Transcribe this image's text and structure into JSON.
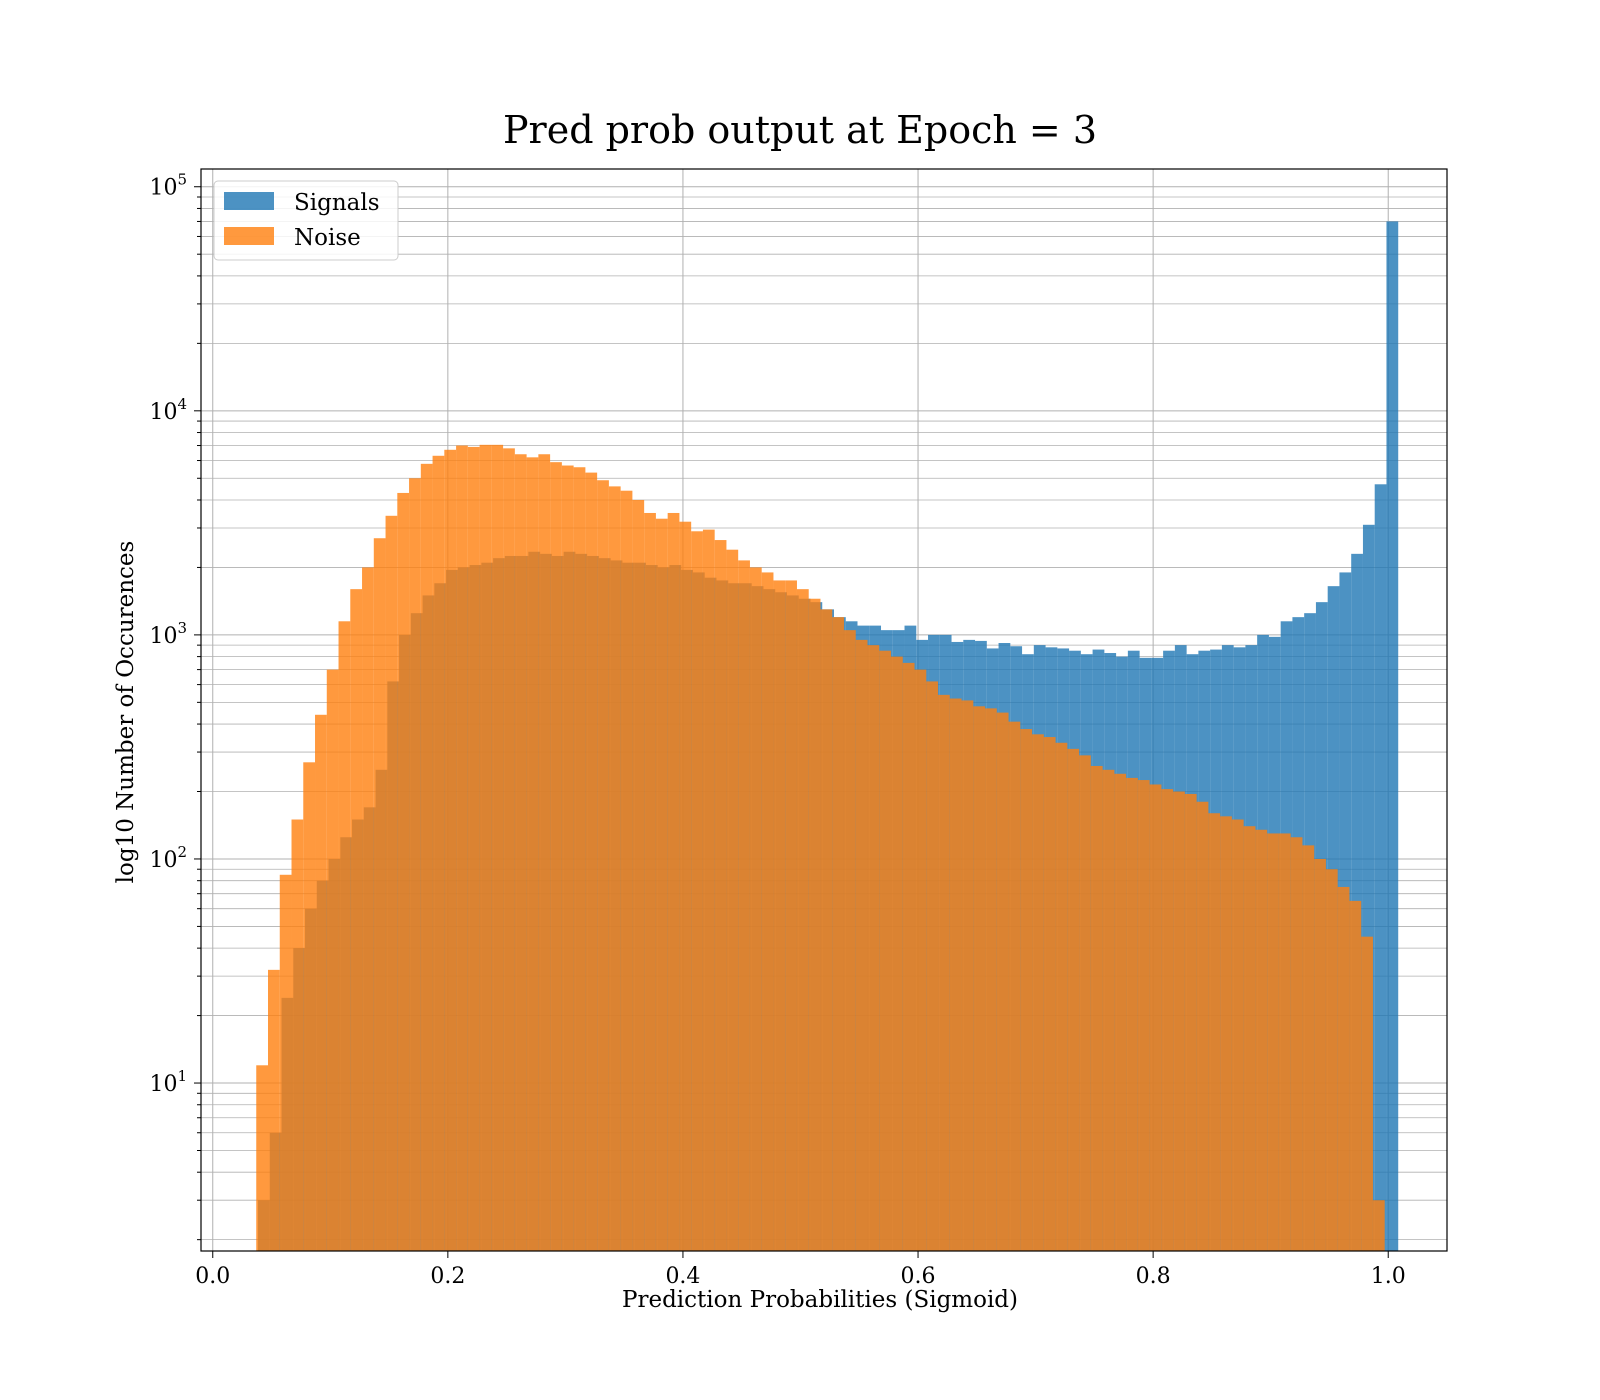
{
  "chart_data": {
    "type": "histogram",
    "title": "Pred prob output at Epoch = 3",
    "xlabel": "Prediction Probabilities (Sigmoid)",
    "ylabel": "log10 Number of Occurences",
    "xlim": [
      -0.01,
      1.05
    ],
    "ylim": [
      1.78,
      120000
    ],
    "yscale": "log",
    "grid": true,
    "grid_minor": true,
    "legend_position": "top-left",
    "x_ticks": [
      "0.0",
      "0.2",
      "0.4",
      "0.6",
      "0.8",
      "1.0"
    ],
    "y_ticks": [
      {
        "base": "10",
        "exp": "1"
      },
      {
        "base": "10",
        "exp": "2"
      },
      {
        "base": "10",
        "exp": "3"
      },
      {
        "base": "10",
        "exp": "4"
      },
      {
        "base": "10",
        "exp": "5"
      }
    ],
    "series": [
      {
        "name": "Signals",
        "color": "#1f77b4",
        "opacity": 0.8,
        "bins": [
          [
            0.0385,
            0.0485,
            3
          ],
          [
            0.0485,
            0.0585,
            6
          ],
          [
            0.0585,
            0.0685,
            24
          ],
          [
            0.0685,
            0.0785,
            40
          ],
          [
            0.0785,
            0.0885,
            60
          ],
          [
            0.0885,
            0.0985,
            80
          ],
          [
            0.0985,
            0.1085,
            100
          ],
          [
            0.1085,
            0.1185,
            125
          ],
          [
            0.1185,
            0.1285,
            150
          ],
          [
            0.1285,
            0.1385,
            170
          ],
          [
            0.1385,
            0.1485,
            250
          ],
          [
            0.1485,
            0.1585,
            620
          ],
          [
            0.1585,
            0.1685,
            1000
          ],
          [
            0.1685,
            0.1785,
            1250
          ],
          [
            0.1785,
            0.1885,
            1500
          ],
          [
            0.1885,
            0.1985,
            1700
          ],
          [
            0.1985,
            0.2085,
            1950
          ],
          [
            0.2085,
            0.2185,
            2000
          ],
          [
            0.2185,
            0.2285,
            2050
          ],
          [
            0.2285,
            0.2385,
            2100
          ],
          [
            0.2385,
            0.2485,
            2200
          ],
          [
            0.2485,
            0.2585,
            2250
          ],
          [
            0.2585,
            0.2685,
            2250
          ],
          [
            0.2685,
            0.2785,
            2350
          ],
          [
            0.2785,
            0.2885,
            2300
          ],
          [
            0.2885,
            0.2985,
            2250
          ],
          [
            0.2985,
            0.3085,
            2350
          ],
          [
            0.3085,
            0.3185,
            2300
          ],
          [
            0.3185,
            0.3285,
            2250
          ],
          [
            0.3285,
            0.3385,
            2200
          ],
          [
            0.3385,
            0.3485,
            2150
          ],
          [
            0.3485,
            0.3585,
            2100
          ],
          [
            0.3585,
            0.3685,
            2100
          ],
          [
            0.3685,
            0.3785,
            2050
          ],
          [
            0.3785,
            0.3885,
            2000
          ],
          [
            0.3885,
            0.3985,
            2050
          ],
          [
            0.3985,
            0.4085,
            1950
          ],
          [
            0.4085,
            0.4185,
            1900
          ],
          [
            0.4185,
            0.4285,
            1800
          ],
          [
            0.4285,
            0.4385,
            1750
          ],
          [
            0.4385,
            0.4485,
            1700
          ],
          [
            0.4485,
            0.4585,
            1700
          ],
          [
            0.4585,
            0.4685,
            1650
          ],
          [
            0.4685,
            0.4785,
            1600
          ],
          [
            0.4785,
            0.4885,
            1550
          ],
          [
            0.4885,
            0.4985,
            1500
          ],
          [
            0.4985,
            0.5085,
            1450
          ],
          [
            0.5085,
            0.5185,
            1400
          ],
          [
            0.5185,
            0.5285,
            1300
          ],
          [
            0.5285,
            0.5385,
            1200
          ],
          [
            0.5385,
            0.5485,
            1150
          ],
          [
            0.5485,
            0.5585,
            1100
          ],
          [
            0.5585,
            0.5685,
            1100
          ],
          [
            0.5685,
            0.5785,
            1050
          ],
          [
            0.5785,
            0.5885,
            1050
          ],
          [
            0.5885,
            0.5985,
            1100
          ],
          [
            0.5985,
            0.6085,
            950
          ],
          [
            0.6085,
            0.6185,
            1000
          ],
          [
            0.6185,
            0.6285,
            1000
          ],
          [
            0.6285,
            0.6385,
            930
          ],
          [
            0.6385,
            0.6485,
            950
          ],
          [
            0.6485,
            0.6585,
            940
          ],
          [
            0.6585,
            0.6685,
            870
          ],
          [
            0.6685,
            0.6785,
            920
          ],
          [
            0.6785,
            0.6885,
            890
          ],
          [
            0.6885,
            0.6985,
            820
          ],
          [
            0.6985,
            0.7085,
            900
          ],
          [
            0.7085,
            0.7185,
            880
          ],
          [
            0.7185,
            0.7285,
            870
          ],
          [
            0.7285,
            0.7385,
            850
          ],
          [
            0.7385,
            0.7485,
            820
          ],
          [
            0.7485,
            0.7585,
            860
          ],
          [
            0.7585,
            0.7685,
            830
          ],
          [
            0.7685,
            0.7785,
            800
          ],
          [
            0.7785,
            0.7885,
            850
          ],
          [
            0.7885,
            0.7985,
            790
          ],
          [
            0.7985,
            0.8085,
            790
          ],
          [
            0.8085,
            0.8185,
            850
          ],
          [
            0.8185,
            0.8285,
            900
          ],
          [
            0.8285,
            0.8385,
            820
          ],
          [
            0.8385,
            0.8485,
            850
          ],
          [
            0.8485,
            0.8585,
            860
          ],
          [
            0.8585,
            0.8685,
            900
          ],
          [
            0.8685,
            0.8785,
            880
          ],
          [
            0.8785,
            0.8885,
            900
          ],
          [
            0.8885,
            0.8985,
            1000
          ],
          [
            0.8985,
            0.9085,
            980
          ],
          [
            0.9085,
            0.9185,
            1150
          ],
          [
            0.9185,
            0.9285,
            1200
          ],
          [
            0.9285,
            0.9385,
            1250
          ],
          [
            0.9385,
            0.9485,
            1400
          ],
          [
            0.9485,
            0.9585,
            1650
          ],
          [
            0.9585,
            0.9685,
            1900
          ],
          [
            0.9685,
            0.9785,
            2300
          ],
          [
            0.9785,
            0.9885,
            3100
          ],
          [
            0.9885,
            0.9985,
            4700
          ],
          [
            0.9985,
            1.0085,
            70000
          ]
        ]
      },
      {
        "name": "Noise",
        "color": "#ff7f0e",
        "opacity": 0.8,
        "bins": [
          [
            0.037,
            0.047,
            12
          ],
          [
            0.047,
            0.057,
            32
          ],
          [
            0.057,
            0.067,
            85
          ],
          [
            0.067,
            0.077,
            150
          ],
          [
            0.077,
            0.087,
            270
          ],
          [
            0.087,
            0.097,
            440
          ],
          [
            0.097,
            0.107,
            700
          ],
          [
            0.107,
            0.117,
            1150
          ],
          [
            0.117,
            0.127,
            1600
          ],
          [
            0.127,
            0.137,
            2000
          ],
          [
            0.137,
            0.147,
            2700
          ],
          [
            0.147,
            0.157,
            3400
          ],
          [
            0.157,
            0.167,
            4300
          ],
          [
            0.167,
            0.177,
            5000
          ],
          [
            0.177,
            0.187,
            5800
          ],
          [
            0.187,
            0.197,
            6300
          ],
          [
            0.197,
            0.207,
            6700
          ],
          [
            0.207,
            0.217,
            7000
          ],
          [
            0.217,
            0.227,
            6900
          ],
          [
            0.227,
            0.237,
            7050
          ],
          [
            0.237,
            0.247,
            7050
          ],
          [
            0.247,
            0.257,
            6800
          ],
          [
            0.257,
            0.267,
            6400
          ],
          [
            0.267,
            0.277,
            6200
          ],
          [
            0.277,
            0.287,
            6400
          ],
          [
            0.287,
            0.297,
            5900
          ],
          [
            0.297,
            0.307,
            5700
          ],
          [
            0.307,
            0.317,
            5600
          ],
          [
            0.317,
            0.327,
            5300
          ],
          [
            0.327,
            0.337,
            4900
          ],
          [
            0.337,
            0.347,
            4600
          ],
          [
            0.347,
            0.357,
            4400
          ],
          [
            0.357,
            0.367,
            4000
          ],
          [
            0.367,
            0.377,
            3500
          ],
          [
            0.377,
            0.387,
            3300
          ],
          [
            0.387,
            0.397,
            3500
          ],
          [
            0.397,
            0.407,
            3200
          ],
          [
            0.407,
            0.417,
            2900
          ],
          [
            0.417,
            0.427,
            2950
          ],
          [
            0.427,
            0.437,
            2650
          ],
          [
            0.437,
            0.447,
            2400
          ],
          [
            0.447,
            0.457,
            2150
          ],
          [
            0.457,
            0.467,
            2000
          ],
          [
            0.467,
            0.477,
            1900
          ],
          [
            0.477,
            0.487,
            1750
          ],
          [
            0.487,
            0.497,
            1750
          ],
          [
            0.497,
            0.507,
            1600
          ],
          [
            0.507,
            0.517,
            1450
          ],
          [
            0.517,
            0.527,
            1300
          ],
          [
            0.527,
            0.537,
            1200
          ],
          [
            0.537,
            0.547,
            1050
          ],
          [
            0.547,
            0.557,
            950
          ],
          [
            0.557,
            0.567,
            900
          ],
          [
            0.567,
            0.577,
            850
          ],
          [
            0.577,
            0.587,
            800
          ],
          [
            0.587,
            0.597,
            750
          ],
          [
            0.597,
            0.607,
            700
          ],
          [
            0.607,
            0.617,
            620
          ],
          [
            0.617,
            0.627,
            540
          ],
          [
            0.627,
            0.637,
            520
          ],
          [
            0.637,
            0.647,
            510
          ],
          [
            0.647,
            0.657,
            480
          ],
          [
            0.657,
            0.667,
            470
          ],
          [
            0.667,
            0.677,
            450
          ],
          [
            0.677,
            0.687,
            410
          ],
          [
            0.687,
            0.697,
            380
          ],
          [
            0.697,
            0.707,
            360
          ],
          [
            0.707,
            0.717,
            350
          ],
          [
            0.717,
            0.727,
            330
          ],
          [
            0.727,
            0.737,
            310
          ],
          [
            0.737,
            0.747,
            290
          ],
          [
            0.747,
            0.757,
            260
          ],
          [
            0.757,
            0.767,
            250
          ],
          [
            0.767,
            0.777,
            240
          ],
          [
            0.777,
            0.787,
            230
          ],
          [
            0.787,
            0.797,
            225
          ],
          [
            0.797,
            0.807,
            215
          ],
          [
            0.807,
            0.817,
            205
          ],
          [
            0.817,
            0.827,
            200
          ],
          [
            0.827,
            0.837,
            195
          ],
          [
            0.837,
            0.847,
            180
          ],
          [
            0.847,
            0.857,
            160
          ],
          [
            0.857,
            0.867,
            155
          ],
          [
            0.867,
            0.877,
            150
          ],
          [
            0.877,
            0.887,
            140
          ],
          [
            0.887,
            0.897,
            135
          ],
          [
            0.897,
            0.907,
            130
          ],
          [
            0.907,
            0.917,
            130
          ],
          [
            0.917,
            0.927,
            125
          ],
          [
            0.927,
            0.937,
            115
          ],
          [
            0.937,
            0.947,
            100
          ],
          [
            0.947,
            0.957,
            90
          ],
          [
            0.957,
            0.967,
            75
          ],
          [
            0.967,
            0.977,
            65
          ],
          [
            0.977,
            0.987,
            45
          ],
          [
            0.987,
            0.997,
            3
          ]
        ]
      }
    ]
  }
}
